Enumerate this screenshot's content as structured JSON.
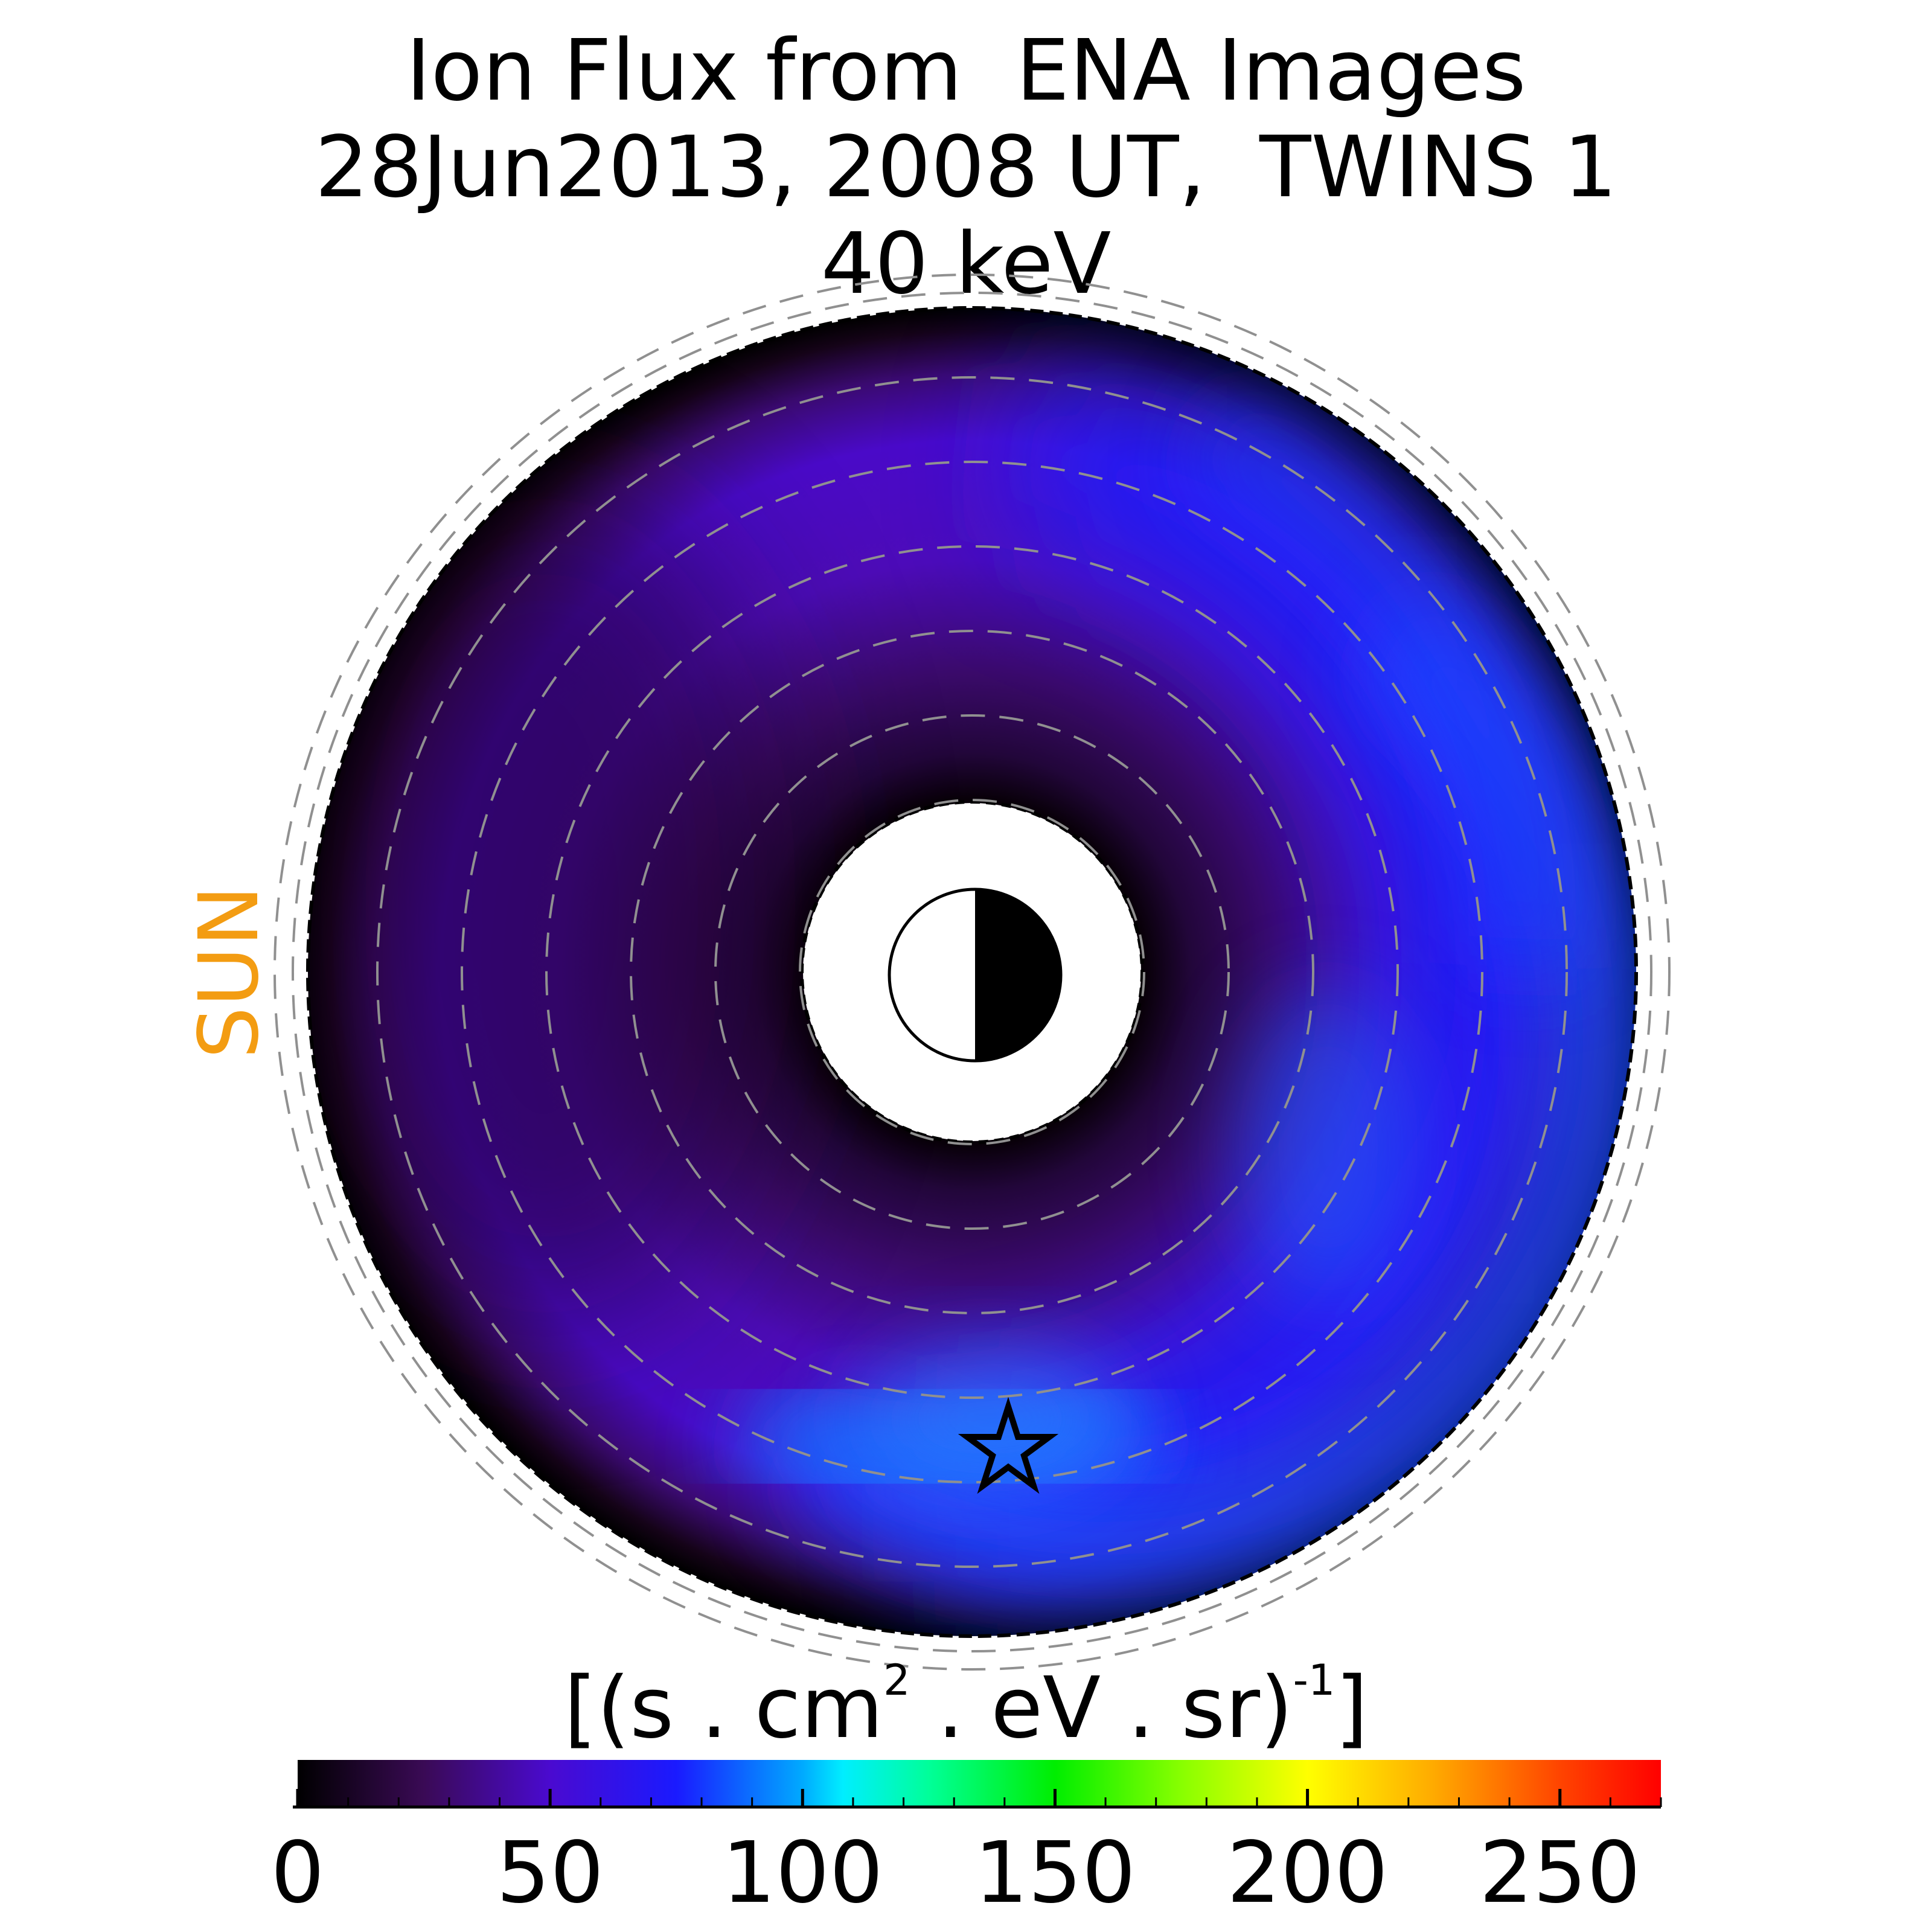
{
  "title": {
    "line1": "Ion Flux from  ENA Images",
    "line2": "28Jun2013, 2008 UT,  TWINS 1",
    "line3": "40 keV"
  },
  "sun_label": "SUN",
  "colorbar": {
    "unit_open": "[(s . cm",
    "unit_sq": "2",
    "unit_mid": " . eV . sr)",
    "unit_exp": "-1",
    "unit_close": "]",
    "range": [
      0,
      270
    ],
    "ticks": [
      "0",
      "50",
      "100",
      "150",
      "200",
      "250"
    ],
    "colormap": [
      [
        0,
        "#000000"
      ],
      [
        25,
        "#3a0a55"
      ],
      [
        50,
        "#4a0ad0"
      ],
      [
        75,
        "#1a1aff"
      ],
      [
        100,
        "#00aaff"
      ],
      [
        108,
        "#00eeff"
      ],
      [
        125,
        "#00ff99"
      ],
      [
        150,
        "#00ee00"
      ],
      [
        175,
        "#88ff00"
      ],
      [
        200,
        "#ffff00"
      ],
      [
        225,
        "#ffaa00"
      ],
      [
        250,
        "#ff4400"
      ],
      [
        270,
        "#ff0000"
      ]
    ]
  },
  "chart_data": {
    "type": "heatmap",
    "title": "Ion Flux from  ENA Images 28Jun2013, 2008 UT,  TWINS 1 40 keV",
    "colorbar_label": "[(s . cm2 . eV . sr)-1]",
    "colorbar_range": [
      0,
      270
    ],
    "colorbar_ticks": [
      0,
      50,
      100,
      150,
      200,
      250
    ],
    "grid": true,
    "max_flux_approx": 75,
    "peak_marker": "star"
  }
}
